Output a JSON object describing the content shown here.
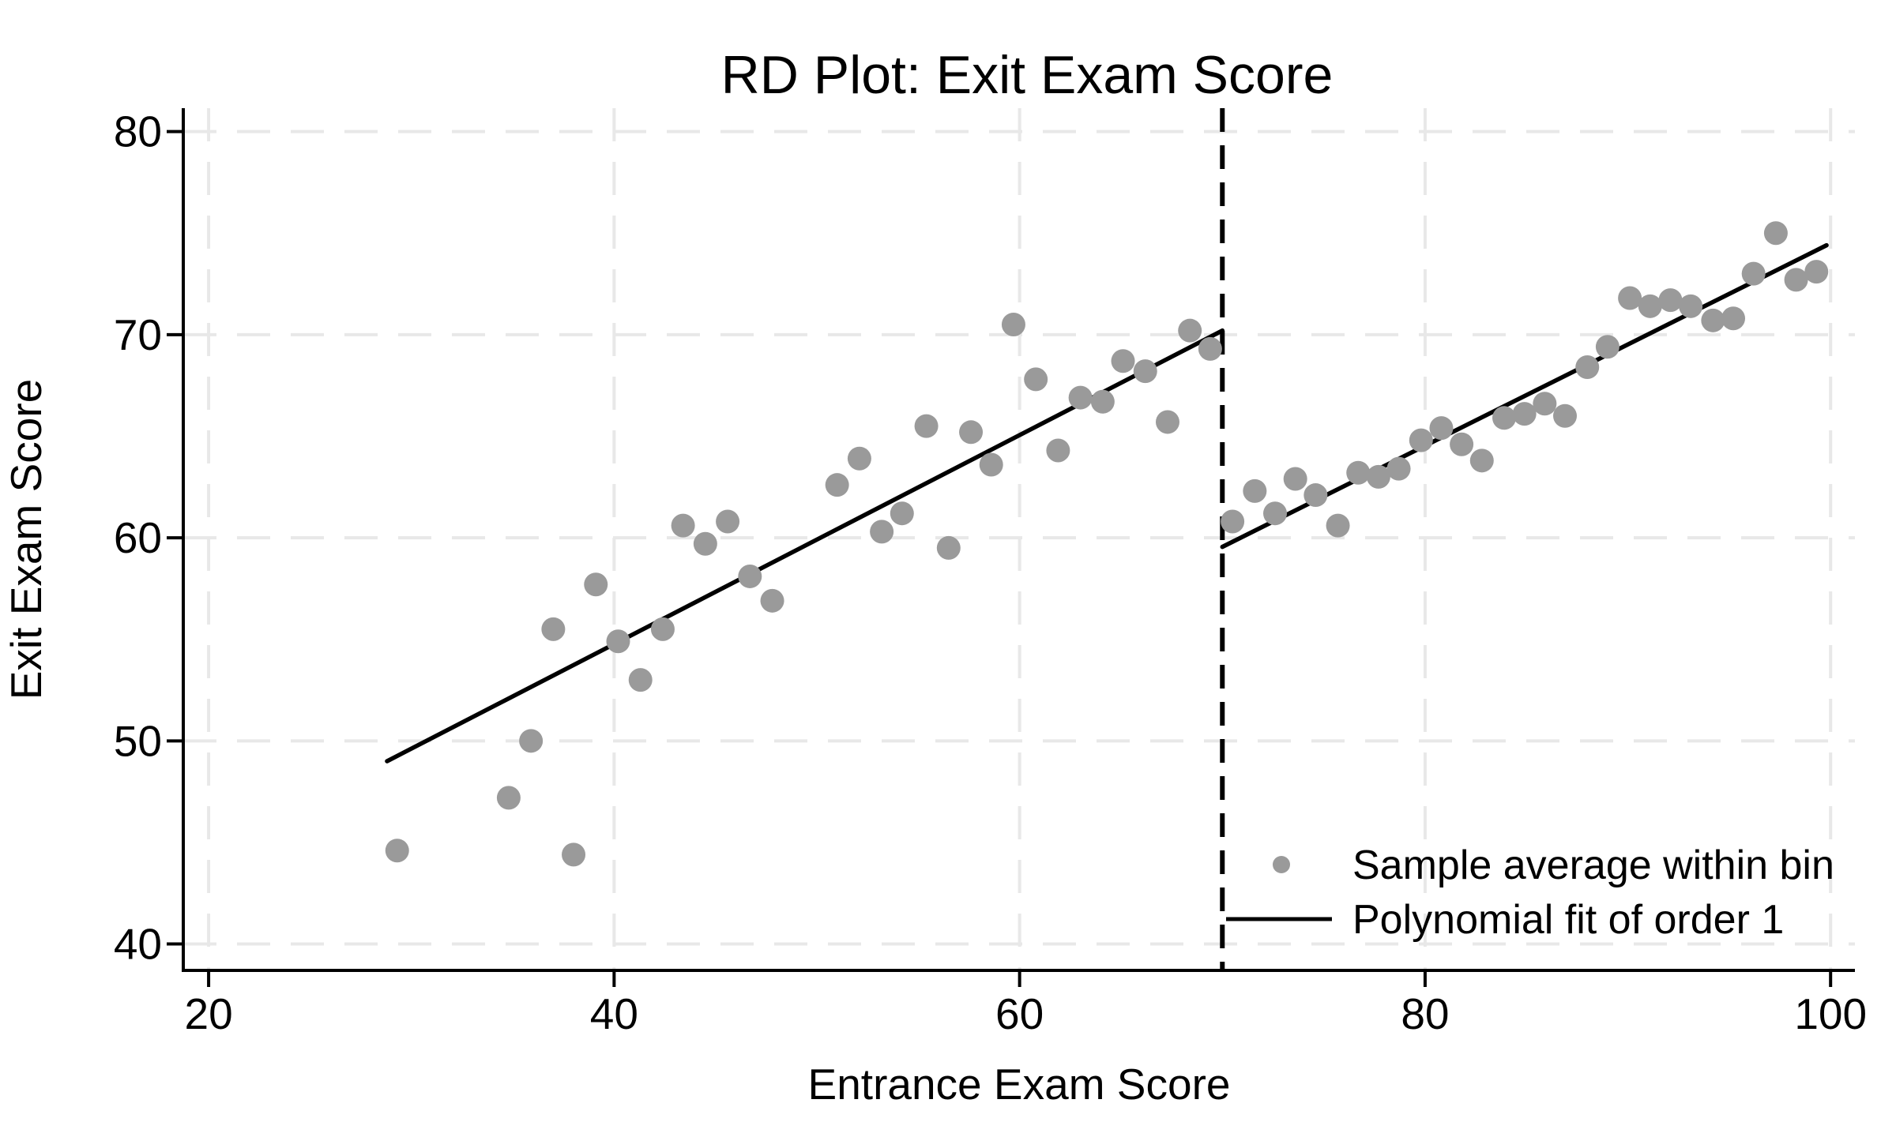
{
  "page": {
    "background_color": "#ffffff"
  },
  "chart_data": {
    "type": "scatter",
    "title": "RD Plot: Exit Exam Score",
    "xlabel": "Entrance Exam Score",
    "ylabel": "Exit Exam Score",
    "xlim": [
      18.75,
      101.2
    ],
    "ylim": [
      38.7,
      81.15
    ],
    "x_ticks": [
      20,
      40,
      60,
      80,
      100
    ],
    "y_ticks": [
      40,
      50,
      60,
      70,
      80
    ],
    "grid": "dashed",
    "cutoff_x": 70,
    "legend_position": "bottom-right",
    "legend": [
      {
        "marker": "dot",
        "label": "Sample average within bin"
      },
      {
        "marker": "line",
        "label": "Polynomial fit of order 1"
      }
    ],
    "series": [
      {
        "name": "Sample average within bin",
        "type": "scatter",
        "points": [
          [
            29.3,
            44.6
          ],
          [
            34.8,
            47.2
          ],
          [
            35.9,
            50.0
          ],
          [
            37.0,
            55.5
          ],
          [
            38.0,
            44.4
          ],
          [
            39.1,
            57.7
          ],
          [
            40.2,
            54.9
          ],
          [
            41.3,
            53.0
          ],
          [
            42.4,
            55.5
          ],
          [
            43.4,
            60.6
          ],
          [
            44.5,
            59.7
          ],
          [
            45.6,
            60.8
          ],
          [
            46.7,
            58.1
          ],
          [
            47.8,
            56.9
          ],
          [
            51.0,
            62.6
          ],
          [
            52.1,
            63.9
          ],
          [
            53.2,
            60.3
          ],
          [
            54.2,
            61.2
          ],
          [
            55.4,
            65.5
          ],
          [
            56.5,
            59.5
          ],
          [
            57.6,
            65.2
          ],
          [
            58.6,
            63.6
          ],
          [
            59.7,
            70.5
          ],
          [
            60.8,
            67.8
          ],
          [
            61.9,
            64.3
          ],
          [
            63.0,
            66.9
          ],
          [
            64.1,
            66.7
          ],
          [
            65.1,
            68.7
          ],
          [
            66.2,
            68.2
          ],
          [
            67.3,
            65.7
          ],
          [
            68.4,
            70.2
          ],
          [
            69.4,
            69.3
          ],
          [
            70.5,
            60.8
          ],
          [
            71.6,
            62.3
          ],
          [
            72.6,
            61.2
          ],
          [
            73.6,
            62.9
          ],
          [
            74.6,
            62.1
          ],
          [
            75.7,
            60.6
          ],
          [
            76.7,
            63.2
          ],
          [
            77.7,
            63.0
          ],
          [
            78.7,
            63.4
          ],
          [
            79.8,
            64.8
          ],
          [
            80.8,
            65.4
          ],
          [
            81.8,
            64.6
          ],
          [
            82.8,
            63.8
          ],
          [
            83.9,
            65.9
          ],
          [
            84.9,
            66.1
          ],
          [
            85.9,
            66.6
          ],
          [
            86.9,
            66.0
          ],
          [
            88.0,
            68.4
          ],
          [
            89.0,
            69.4
          ],
          [
            90.1,
            71.8
          ],
          [
            91.1,
            71.4
          ],
          [
            92.1,
            71.7
          ],
          [
            93.1,
            71.4
          ],
          [
            94.2,
            70.7
          ],
          [
            95.2,
            70.8
          ],
          [
            96.2,
            73.0
          ],
          [
            97.3,
            75.0
          ],
          [
            98.3,
            72.7
          ],
          [
            99.3,
            73.1
          ]
        ]
      },
      {
        "name": "Polynomial fit of order 1",
        "type": "line",
        "segments": [
          {
            "x": [
              28.8,
              70.0
            ],
            "y": [
              49.0,
              70.2
            ]
          },
          {
            "x": [
              70.0,
              99.8
            ],
            "y": [
              59.55,
              74.4
            ]
          }
        ]
      }
    ],
    "colors": {
      "point": "#9a9a9a",
      "fit_line": "#000000",
      "cutoff_line": "#000000",
      "gridline": "#e8e8e8",
      "axis": "#000000",
      "background": "#ffffff"
    }
  }
}
